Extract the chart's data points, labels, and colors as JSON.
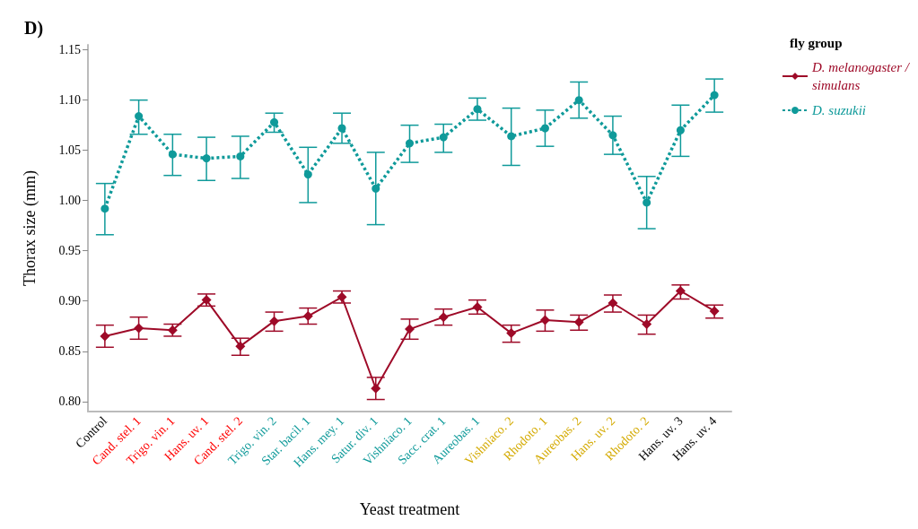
{
  "chart_data": {
    "type": "line",
    "title": "D)",
    "xlabel": "Yeast treatment",
    "ylabel": "Thorax size (mm)",
    "legend_title": "fly group",
    "legend": "top right",
    "grid": false,
    "categories": [
      "Control",
      "Cand. stel. 1",
      "Trigo. vin. 1",
      "Hans. uv. 1",
      "Cand. stel. 2",
      "Trigo. vin. 2",
      "Star. bacil. 1",
      "Hans. mey. 1",
      "Satur. div. 1",
      "Vishniaco. 1",
      "Sacc. crat. 1",
      "Aureobas. 1",
      "Vishniaco. 2",
      "Rhodoto. 1",
      "Aureobas. 2",
      "Hans. uv. 2",
      "Rhodoto. 2",
      "Hans. uv. 3",
      "Hans. uv. 4"
    ],
    "ylim": [
      0.79,
      1.155
    ],
    "yticks": [
      {
        "value": 0.8,
        "label": "0.80"
      },
      {
        "value": 0.85,
        "label": "0.85"
      },
      {
        "value": 0.9,
        "label": "0.90"
      },
      {
        "value": 0.95,
        "label": "0.95"
      },
      {
        "value": 1.0,
        "label": "1.00"
      },
      {
        "value": 1.05,
        "label": "1.05"
      },
      {
        "value": 1.1,
        "label": "1.10"
      },
      {
        "value": 1.15,
        "label": "1.15"
      }
    ],
    "series": [
      {
        "name": "D. melanogaster / simulans",
        "color": "#9e0a28",
        "marker": "diamond",
        "line_style": "solid",
        "values": [
          0.865,
          0.873,
          0.871,
          0.901,
          0.855,
          0.88,
          0.885,
          0.904,
          0.813,
          0.872,
          0.884,
          0.894,
          0.868,
          0.881,
          0.879,
          0.898,
          0.877,
          0.91,
          0.89
        ],
        "errors": [
          [
            0.854,
            0.876
          ],
          [
            0.862,
            0.884
          ],
          [
            0.865,
            0.877
          ],
          [
            0.895,
            0.907
          ],
          [
            0.846,
            0.863
          ],
          [
            0.87,
            0.889
          ],
          [
            0.877,
            0.893
          ],
          [
            0.898,
            0.91
          ],
          [
            0.802,
            0.824
          ],
          [
            0.862,
            0.882
          ],
          [
            0.876,
            0.892
          ],
          [
            0.887,
            0.901
          ],
          [
            0.859,
            0.876
          ],
          [
            0.87,
            0.891
          ],
          [
            0.871,
            0.886
          ],
          [
            0.889,
            0.906
          ],
          [
            0.867,
            0.886
          ],
          [
            0.902,
            0.916
          ],
          [
            0.883,
            0.896
          ]
        ]
      },
      {
        "name": "D. suzukii",
        "color": "#0f9a9a",
        "marker": "circle",
        "line_style": "dotted",
        "values": [
          0.992,
          1.084,
          1.046,
          1.042,
          1.044,
          1.078,
          1.026,
          1.072,
          1.012,
          1.057,
          1.063,
          1.091,
          1.064,
          1.072,
          1.1,
          1.065,
          0.998,
          1.07,
          1.105
        ],
        "errors": [
          [
            0.966,
            1.017
          ],
          [
            1.066,
            1.1
          ],
          [
            1.025,
            1.066
          ],
          [
            1.02,
            1.063
          ],
          [
            1.022,
            1.064
          ],
          [
            1.068,
            1.087
          ],
          [
            0.998,
            1.053
          ],
          [
            1.057,
            1.087
          ],
          [
            0.976,
            1.048
          ],
          [
            1.038,
            1.075
          ],
          [
            1.048,
            1.076
          ],
          [
            1.08,
            1.102
          ],
          [
            1.035,
            1.092
          ],
          [
            1.054,
            1.09
          ],
          [
            1.082,
            1.118
          ],
          [
            1.046,
            1.084
          ],
          [
            0.972,
            1.024
          ],
          [
            1.044,
            1.095
          ],
          [
            1.088,
            1.121
          ]
        ]
      }
    ]
  }
}
